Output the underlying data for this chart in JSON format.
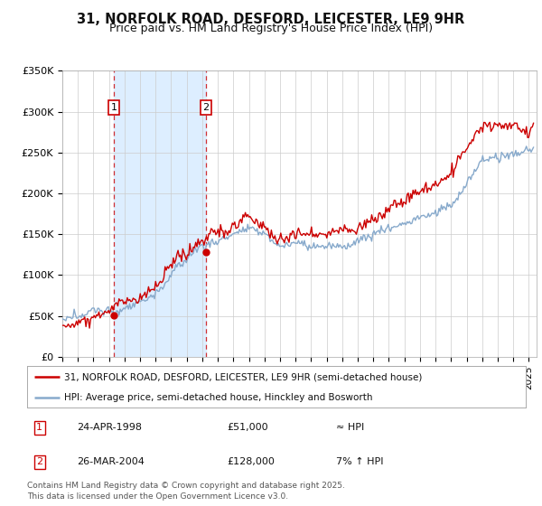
{
  "title": "31, NORFOLK ROAD, DESFORD, LEICESTER, LE9 9HR",
  "subtitle": "Price paid vs. HM Land Registry's House Price Index (HPI)",
  "ylim": [
    0,
    350000
  ],
  "yticks": [
    0,
    50000,
    100000,
    150000,
    200000,
    250000,
    300000,
    350000
  ],
  "ytick_labels": [
    "£0",
    "£50K",
    "£100K",
    "£150K",
    "£200K",
    "£250K",
    "£300K",
    "£350K"
  ],
  "xlim_start": 1995.0,
  "xlim_end": 2025.5,
  "sale_events": [
    {
      "year": 1998.31,
      "price": 51000,
      "label": "1",
      "date": "24-APR-1998",
      "amount": "£51,000",
      "vs_hpi": "≈ HPI"
    },
    {
      "year": 2004.23,
      "price": 128000,
      "label": "2",
      "date": "26-MAR-2004",
      "amount": "£128,000",
      "vs_hpi": "7% ↑ HPI"
    }
  ],
  "line_color_price": "#cc0000",
  "line_color_hpi": "#88aacc",
  "dot_color_price": "#cc0000",
  "vline_color": "#cc0000",
  "shade_color": "#ddeeff",
  "background_color": "#ffffff",
  "legend_entry1": "31, NORFOLK ROAD, DESFORD, LEICESTER, LE9 9HR (semi-detached house)",
  "legend_entry2": "HPI: Average price, semi-detached house, Hinckley and Bosworth",
  "footer": "Contains HM Land Registry data © Crown copyright and database right 2025.\nThis data is licensed under the Open Government Licence v3.0.",
  "title_fontsize": 10.5,
  "subtitle_fontsize": 9,
  "tick_fontsize": 8,
  "legend_fontsize": 7.5,
  "footer_fontsize": 6.5,
  "hpi_anchors_years": [
    1995,
    1996,
    1997,
    1998,
    1999,
    2000,
    2001,
    2002,
    2003,
    2004,
    2005,
    2006,
    2007,
    2008,
    2009,
    2010,
    2011,
    2012,
    2013,
    2014,
    2015,
    2016,
    2017,
    2018,
    2019,
    2020,
    2021,
    2022,
    2023,
    2024,
    2025
  ],
  "hpi_anchors_vals": [
    44000,
    46000,
    50000,
    54000,
    60000,
    68000,
    80000,
    98000,
    118000,
    135000,
    143000,
    150000,
    158000,
    148000,
    133000,
    138000,
    136000,
    133000,
    136000,
    145000,
    155000,
    165000,
    175000,
    180000,
    185000,
    190000,
    218000,
    245000,
    248000,
    252000,
    255000
  ],
  "price_anchors_years": [
    1995,
    1996,
    1997,
    1998,
    1999,
    2000,
    2001,
    2002,
    2003,
    2004,
    2005,
    2006,
    2007,
    2008,
    2009,
    2010,
    2011,
    2012,
    2013,
    2014,
    2015,
    2016,
    2017,
    2018,
    2019,
    2020,
    2021,
    2022,
    2023,
    2024,
    2025
  ],
  "price_anchors_vals": [
    37000,
    39000,
    43000,
    48000,
    55000,
    63000,
    78000,
    100000,
    120000,
    128000,
    138000,
    145000,
    158000,
    148000,
    135000,
    140000,
    138000,
    135000,
    140000,
    150000,
    162000,
    175000,
    188000,
    195000,
    200000,
    206000,
    238000,
    272000,
    278000,
    280000,
    278000
  ]
}
